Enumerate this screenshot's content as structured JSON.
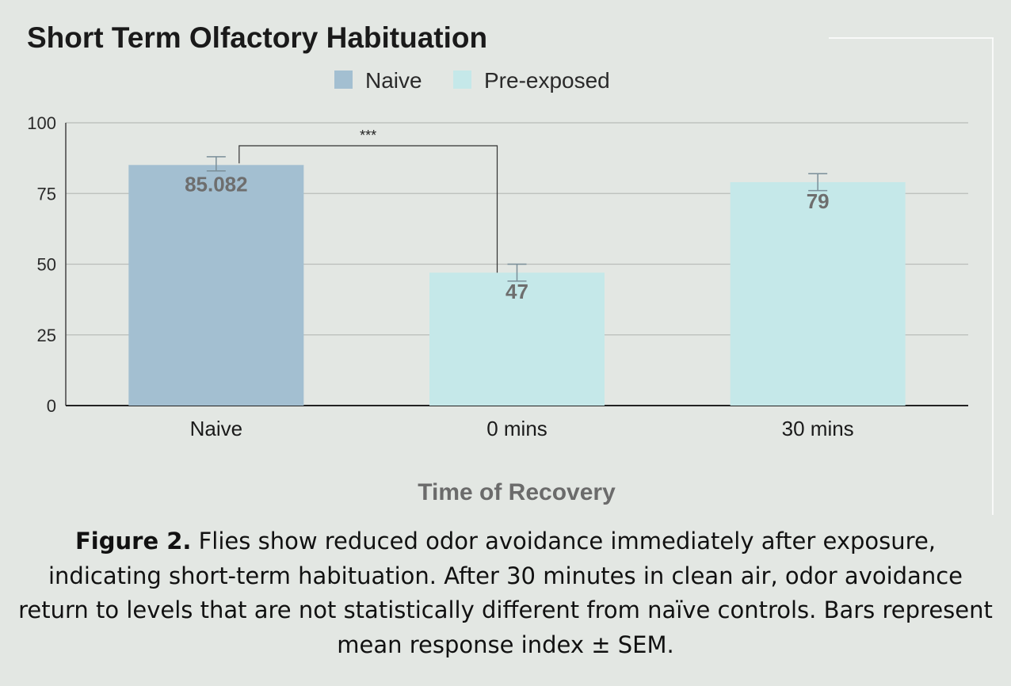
{
  "chart_data": {
    "type": "bar",
    "title": "Short Term Olfactory Habituation",
    "legend": [
      {
        "name": "Naive",
        "color": "#a3bfd1"
      },
      {
        "name": "Pre-exposed",
        "color": "#c5e8e9"
      }
    ],
    "legend_position": "top-center",
    "categories": [
      "Naive",
      "0 mins",
      "30 mins"
    ],
    "values": [
      85.082,
      47,
      79
    ],
    "value_labels": [
      "85.082",
      "47",
      "79"
    ],
    "bar_series": [
      "Naive",
      "Pre-exposed",
      "Pre-exposed"
    ],
    "error_high": [
      88,
      50,
      82
    ],
    "error_low": [
      83,
      44,
      76
    ],
    "xlabel": "Time of Recovery",
    "ylabel": "",
    "ylim": [
      0,
      100
    ],
    "yticks": [
      0,
      25,
      50,
      75,
      100
    ],
    "grid": true,
    "significance": {
      "from": "Naive",
      "to": "0 mins",
      "label": "***"
    }
  },
  "caption": {
    "bold": "Figure 2.",
    "text": " Flies show reduced odor avoidance immediately after exposure, indicating short-term habituation. After 30 minutes in clean air, odor avoidance return to levels that are not statistically different from naïve controls. Bars represent mean response index ± SEM."
  }
}
